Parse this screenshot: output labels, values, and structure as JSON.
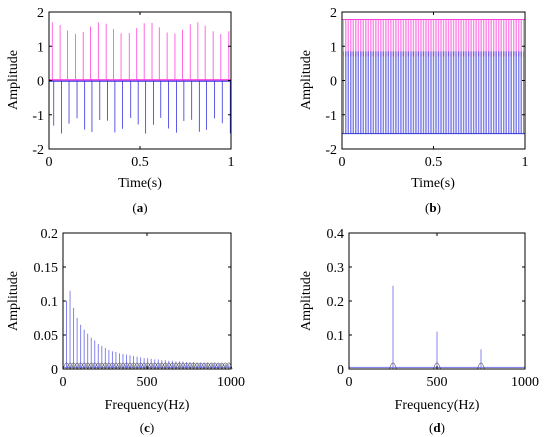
{
  "figure": {
    "background": "#ffffff"
  },
  "chart_data": [
    {
      "id": "a",
      "type": "line",
      "panel_label": "a",
      "xlabel": "Time(s)",
      "ylabel": "Amplitude",
      "xlim": [
        0,
        1
      ],
      "ylim": [
        -2,
        2
      ],
      "xticks": [
        0,
        0.5,
        1
      ],
      "xtick_labels": [
        "0",
        "0.5",
        "1"
      ],
      "yticks": [
        -2,
        -1,
        0,
        1,
        2
      ],
      "ytick_labels": [
        "-2",
        "-1",
        "0",
        "1",
        "2"
      ],
      "grid": false,
      "pulse_times": [
        0.018,
        0.061,
        0.102,
        0.146,
        0.188,
        0.228,
        0.271,
        0.314,
        0.354,
        0.396,
        0.441,
        0.482,
        0.523,
        0.566,
        0.606,
        0.649,
        0.692,
        0.733,
        0.776,
        0.818,
        0.858,
        0.902,
        0.944,
        0.988
      ],
      "series": [
        {
          "color": "#ff44dd",
          "baseline": 0.0,
          "peak": 1.7,
          "trough": -0.1
        },
        {
          "color": "#3333dd",
          "baseline": 0.0,
          "peak": 0.1,
          "trough": -1.55
        }
      ]
    },
    {
      "id": "b",
      "type": "line",
      "panel_label": "b",
      "xlabel": "Time(s)",
      "ylabel": "Amplitude",
      "xlim": [
        0,
        1
      ],
      "ylim": [
        -2,
        2
      ],
      "xticks": [
        0,
        0.5,
        1
      ],
      "xtick_labels": [
        "0",
        "0.5",
        "1"
      ],
      "yticks": [
        -2,
        -1,
        0,
        1,
        2
      ],
      "ytick_labels": [
        "-2",
        "-1",
        "0",
        "1",
        "2"
      ],
      "grid": false,
      "oscillations": 110,
      "series": [
        {
          "color": "#ff44dd",
          "min": 0.7,
          "max": 1.78
        },
        {
          "color": "#3333dd",
          "min": -1.55,
          "max": 0.85
        }
      ]
    },
    {
      "id": "c",
      "type": "line",
      "panel_label": "c",
      "xlabel": "Frequency(Hz)",
      "ylabel": "Amplitude",
      "xlim": [
        0,
        1000
      ],
      "ylim": [
        0,
        0.2
      ],
      "xticks": [
        0,
        500,
        1000
      ],
      "xtick_labels": [
        "0",
        "500",
        "1000"
      ],
      "yticks": [
        0,
        0.05,
        0.1,
        0.15,
        0.2
      ],
      "ytick_labels": [
        "0",
        "0.05",
        "0.1",
        "0.15",
        "0.2"
      ],
      "grid": false,
      "series": [
        {
          "color": "#7777ee",
          "x": [
            21,
            42,
            63,
            84,
            105,
            126,
            147,
            168,
            189,
            210,
            231,
            252,
            273,
            294,
            315,
            336,
            357,
            378,
            399,
            420,
            441,
            462,
            483,
            504,
            525,
            546,
            567,
            588,
            609,
            630,
            651,
            672,
            693,
            714,
            735,
            756,
            777,
            798,
            819,
            840,
            861,
            882,
            903,
            924,
            945,
            966,
            987
          ],
          "values": [
            0.1,
            0.115,
            0.09,
            0.075,
            0.065,
            0.058,
            0.052,
            0.046,
            0.042,
            0.037,
            0.034,
            0.031,
            0.028,
            0.026,
            0.025,
            0.023,
            0.022,
            0.021,
            0.02,
            0.019,
            0.018,
            0.017,
            0.016,
            0.016,
            0.015,
            0.014,
            0.014,
            0.013,
            0.013,
            0.012,
            0.012,
            0.011,
            0.011,
            0.011,
            0.01,
            0.01,
            0.01,
            0.009,
            0.009,
            0.009,
            0.009,
            0.008,
            0.008,
            0.008,
            0.008,
            0.007,
            0.007
          ]
        }
      ]
    },
    {
      "id": "d",
      "type": "line",
      "panel_label": "d",
      "xlabel": "Frequency(Hz)",
      "ylabel": "Amplitude",
      "xlim": [
        0,
        1000
      ],
      "ylim": [
        0,
        0.4
      ],
      "xticks": [
        0,
        500,
        1000
      ],
      "xtick_labels": [
        "0",
        "500",
        "1000"
      ],
      "yticks": [
        0,
        0.1,
        0.2,
        0.3,
        0.4
      ],
      "ytick_labels": [
        "0",
        "0.1",
        "0.2",
        "0.3",
        "0.4"
      ],
      "grid": false,
      "series": [
        {
          "color": "#7777ee",
          "x": [
            250,
            500,
            750
          ],
          "values": [
            0.245,
            0.11,
            0.058
          ]
        }
      ]
    }
  ]
}
